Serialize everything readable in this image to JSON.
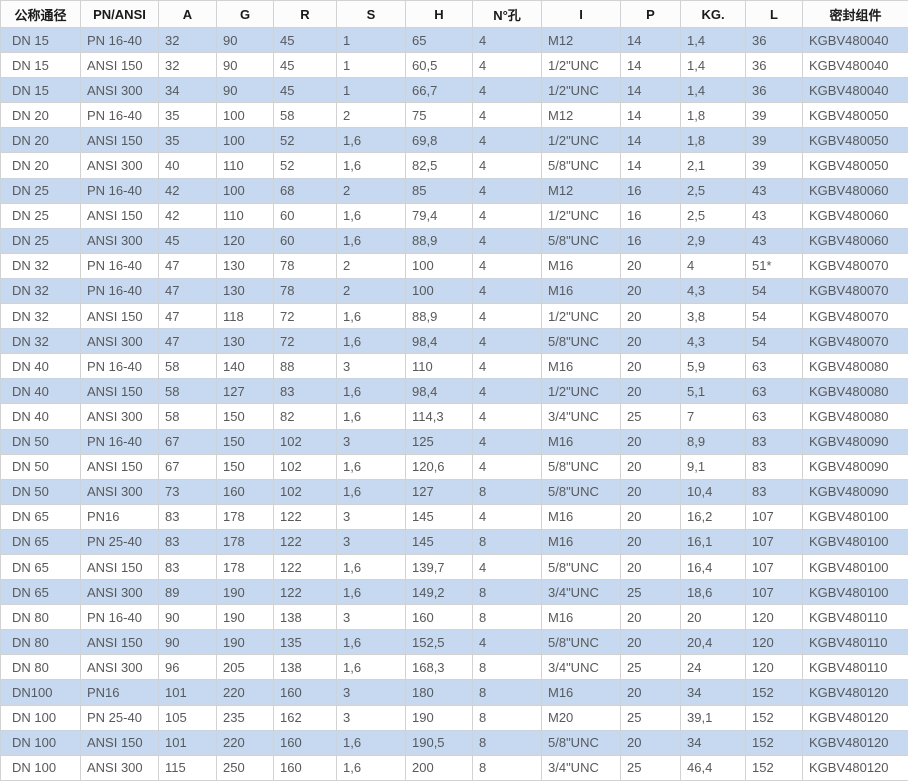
{
  "table": {
    "columns": [
      "公称通径",
      "PN/ANSI",
      "A",
      "G",
      "R",
      "S",
      "H",
      "N°孔",
      "I",
      "P",
      "KG.",
      "L",
      "密封组件"
    ],
    "rows": [
      [
        "DN 15",
        "PN 16-40",
        "32",
        "90",
        "45",
        "1",
        "65",
        "4",
        "M12",
        "14",
        "1,4",
        "36",
        "KGBV480040"
      ],
      [
        "DN 15",
        "ANSI 150",
        "32",
        "90",
        "45",
        "1",
        "60,5",
        "4",
        "1/2\"UNC",
        "14",
        "1,4",
        "36",
        "KGBV480040"
      ],
      [
        "DN 15",
        "ANSI 300",
        "34",
        "90",
        "45",
        "1",
        "66,7",
        "4",
        "1/2\"UNC",
        "14",
        "1,4",
        "36",
        "KGBV480040"
      ],
      [
        "DN 20",
        "PN 16-40",
        "35",
        "100",
        "58",
        "2",
        "75",
        "4",
        "M12",
        "14",
        "1,8",
        "39",
        "KGBV480050"
      ],
      [
        "DN 20",
        "ANSI 150",
        "35",
        "100",
        "52",
        "1,6",
        "69,8",
        "4",
        "1/2\"UNC",
        "14",
        "1,8",
        "39",
        "KGBV480050"
      ],
      [
        "DN 20",
        "ANSI 300",
        "40",
        "110",
        "52",
        "1,6",
        "82,5",
        "4",
        "5/8\"UNC",
        "14",
        "2,1",
        "39",
        "KGBV480050"
      ],
      [
        "DN 25",
        "PN 16-40",
        "42",
        "100",
        "68",
        "2",
        "85",
        "4",
        "M12",
        "16",
        "2,5",
        "43",
        "KGBV480060"
      ],
      [
        "DN 25",
        "ANSI 150",
        "42",
        "110",
        "60",
        "1,6",
        "79,4",
        "4",
        "1/2\"UNC",
        "16",
        "2,5",
        "43",
        "KGBV480060"
      ],
      [
        "DN 25",
        "ANSI 300",
        "45",
        "120",
        "60",
        "1,6",
        "88,9",
        "4",
        "5/8\"UNC",
        "16",
        "2,9",
        "43",
        "KGBV480060"
      ],
      [
        "DN 32",
        "PN 16-40",
        "47",
        "130",
        "78",
        "2",
        "100",
        "4",
        "M16",
        "20",
        "4",
        "51*",
        "KGBV480070"
      ],
      [
        "DN 32",
        "PN 16-40",
        "47",
        "130",
        "78",
        "2",
        "100",
        "4",
        "M16",
        "20",
        "4,3",
        "54",
        "KGBV480070"
      ],
      [
        "DN 32",
        "ANSI 150",
        "47",
        "118",
        "72",
        "1,6",
        "88,9",
        "4",
        "1/2\"UNC",
        "20",
        "3,8",
        "54",
        "KGBV480070"
      ],
      [
        "DN 32",
        "ANSI 300",
        "47",
        "130",
        "72",
        "1,6",
        "98,4",
        "4",
        "5/8\"UNC",
        "20",
        "4,3",
        "54",
        "KGBV480070"
      ],
      [
        "DN 40",
        "PN 16-40",
        "58",
        "140",
        "88",
        "3",
        "110",
        "4",
        "M16",
        "20",
        "5,9",
        "63",
        "KGBV480080"
      ],
      [
        "DN 40",
        "ANSI 150",
        "58",
        "127",
        "83",
        "1,6",
        "98,4",
        "4",
        "1/2\"UNC",
        "20",
        "5,1",
        "63",
        "KGBV480080"
      ],
      [
        "DN 40",
        "ANSI 300",
        "58",
        "150",
        "82",
        "1,6",
        "114,3",
        "4",
        "3/4\"UNC",
        "25",
        "7",
        "63",
        "KGBV480080"
      ],
      [
        "DN 50",
        "PN 16-40",
        "67",
        "150",
        "102",
        "3",
        "125",
        "4",
        "M16",
        "20",
        "8,9",
        "83",
        "KGBV480090"
      ],
      [
        "DN 50",
        "ANSI 150",
        "67",
        "150",
        "102",
        "1,6",
        "120,6",
        "4",
        "5/8\"UNC",
        "20",
        "9,1",
        "83",
        "KGBV480090"
      ],
      [
        "DN 50",
        "ANSI 300",
        "73",
        "160",
        "102",
        "1,6",
        "127",
        "8",
        "5/8\"UNC",
        "20",
        "10,4",
        "83",
        "KGBV480090"
      ],
      [
        "DN 65",
        "PN16",
        "83",
        "178",
        "122",
        "3",
        "145",
        "4",
        "M16",
        "20",
        "16,2",
        "107",
        "KGBV480100"
      ],
      [
        "DN 65",
        "PN 25-40",
        "83",
        "178",
        "122",
        "3",
        "145",
        "8",
        "M16",
        "20",
        "16,1",
        "107",
        "KGBV480100"
      ],
      [
        "DN 65",
        "ANSI 150",
        "83",
        "178",
        "122",
        "1,6",
        "139,7",
        "4",
        "5/8\"UNC",
        "20",
        "16,4",
        "107",
        "KGBV480100"
      ],
      [
        "DN 65",
        "ANSI 300",
        "89",
        "190",
        "122",
        "1,6",
        "149,2",
        "8",
        "3/4\"UNC",
        "25",
        "18,6",
        "107",
        "KGBV480100"
      ],
      [
        "DN 80",
        "PN 16-40",
        "90",
        "190",
        "138",
        "3",
        "160",
        "8",
        "M16",
        "20",
        "20",
        "120",
        "KGBV480110"
      ],
      [
        "DN 80",
        "ANSI 150",
        "90",
        "190",
        "135",
        "1,6",
        "152,5",
        "4",
        "5/8\"UNC",
        "20",
        "20,4",
        "120",
        "KGBV480110"
      ],
      [
        "DN 80",
        "ANSI 300",
        "96",
        "205",
        "138",
        "1,6",
        "168,3",
        "8",
        "3/4\"UNC",
        "25",
        "24",
        "120",
        "KGBV480110"
      ],
      [
        "DN100",
        "PN16",
        "101",
        "220",
        "160",
        "3",
        "180",
        "8",
        "M16",
        "20",
        "34",
        "152",
        "KGBV480120"
      ],
      [
        "DN 100",
        "PN 25-40",
        "105",
        "235",
        "162",
        "3",
        "190",
        "8",
        "M20",
        "25",
        "39,1",
        "152",
        "KGBV480120"
      ],
      [
        "DN 100",
        "ANSI 150",
        "101",
        "220",
        "160",
        "1,6",
        "190,5",
        "8",
        "5/8\"UNC",
        "20",
        "34",
        "152",
        "KGBV480120"
      ],
      [
        "DN 100",
        "ANSI 300",
        "115",
        "250",
        "160",
        "1,6",
        "200",
        "8",
        "3/4\"UNC",
        "25",
        "46,4",
        "152",
        "KGBV480120"
      ]
    ]
  },
  "colors": {
    "row_alt_blue": "#c6d9f1",
    "row_white": "#ffffff",
    "header_bg": "#fcfcfc",
    "cell_border": "#d2d2d2",
    "outer_border": "#c3c3c3",
    "text": "#595959",
    "header_text": "#1a1a1a"
  }
}
